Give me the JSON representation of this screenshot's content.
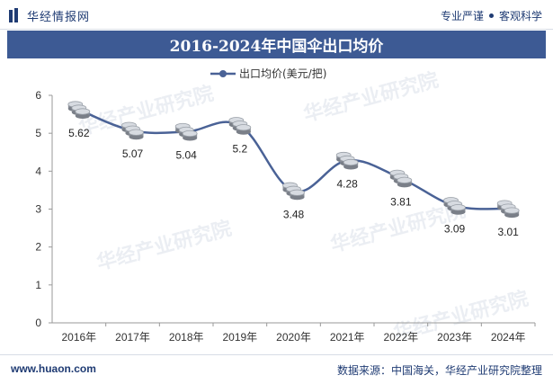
{
  "header": {
    "brand": "华经情报网",
    "tagline_left": "专业严谨",
    "tagline_right": "客观科学"
  },
  "title": "2016-2024年中国伞出口均价",
  "watermark": "华经产业研究院",
  "footer": {
    "site": "www.huaon.com",
    "source": "数据来源：中国海关，华经产业研究院整理"
  },
  "colors": {
    "header_bg": "#3d5a94",
    "line": "#4a6296",
    "text_dark": "#1f3b73"
  },
  "chart_data": {
    "type": "line",
    "x": [
      "2016年",
      "2017年",
      "2018年",
      "2019年",
      "2020年",
      "2021年",
      "2022年",
      "2023年",
      "2024年"
    ],
    "series": [
      {
        "name": "出口均价(美元/把)",
        "values": [
          5.62,
          5.07,
          5.04,
          5.2,
          3.48,
          4.28,
          3.81,
          3.09,
          3.01
        ]
      }
    ],
    "value_labels": [
      "5.62",
      "5.07",
      "5.04",
      "5.2",
      "3.48",
      "4.28",
      "3.81",
      "3.09",
      "3.01"
    ],
    "ylim": [
      0,
      6
    ],
    "yticks": [
      0,
      1,
      2,
      3,
      4,
      5,
      6
    ],
    "grid": false,
    "legend": "top-center",
    "marker": "coin-stack"
  }
}
